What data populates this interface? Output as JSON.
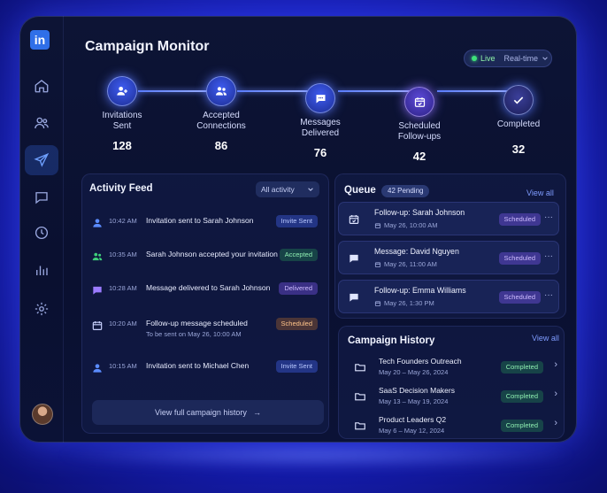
{
  "header": {
    "title": "Campaign Monitor",
    "live_label": "Live",
    "mode_label": "Real-time"
  },
  "sidebar": {
    "logo": "in",
    "items": [
      {
        "icon": "home-icon"
      },
      {
        "icon": "users-icon"
      },
      {
        "icon": "send-icon",
        "active": true
      },
      {
        "icon": "message-icon"
      },
      {
        "icon": "clock-icon"
      },
      {
        "icon": "bar-chart-icon"
      },
      {
        "icon": "gear-icon"
      }
    ]
  },
  "pipeline": {
    "steps": [
      {
        "label_1": "Invitations",
        "label_2": "Sent",
        "count": "128",
        "icon": "user-plus-icon"
      },
      {
        "label_1": "Accepted",
        "label_2": "Connections",
        "count": "86",
        "icon": "users-icon"
      },
      {
        "label_1": "Messages",
        "label_2": "Delivered",
        "count": "76",
        "icon": "message-icon"
      },
      {
        "label_1": "Scheduled",
        "label_2": "Follow-ups",
        "count": "42",
        "icon": "calendar-icon"
      },
      {
        "label_1": "Completed",
        "label_2": "",
        "count": "32",
        "icon": "check-icon"
      }
    ]
  },
  "activity": {
    "title": "Activity Feed",
    "filter": "All activity",
    "items": [
      {
        "time": "10:42 AM",
        "text": "Invitation sent to Sarah Johnson",
        "sub": "",
        "badge": "Invite Sent",
        "icon": "user-icon"
      },
      {
        "time": "10:35 AM",
        "text": "Sarah Johnson accepted your invitation",
        "sub": "",
        "badge": "Accepted",
        "icon": "users-icon"
      },
      {
        "time": "10:28 AM",
        "text": "Message delivered to Sarah Johnson",
        "sub": "",
        "badge": "Delivered",
        "icon": "message-icon"
      },
      {
        "time": "10:20 AM",
        "text": "Follow-up message scheduled",
        "sub": "To be sent on May 26, 10:00 AM",
        "badge": "Scheduled",
        "icon": "calendar-icon"
      },
      {
        "time": "10:15 AM",
        "text": "Invitation sent to Michael Chen",
        "sub": "",
        "badge": "Invite Sent",
        "icon": "user-icon"
      }
    ],
    "view_full": "View full campaign history",
    "view_full_arrow": "→"
  },
  "queue": {
    "title": "Queue",
    "pending": "42 Pending",
    "view_all": "View all",
    "items": [
      {
        "title": "Follow-up: Sarah Johnson",
        "date": "May 26, 10:00 AM",
        "badge": "Scheduled",
        "icon": "calendar-icon"
      },
      {
        "title": "Message: David Nguyen",
        "date": "May 26, 11:00 AM",
        "badge": "Scheduled",
        "icon": "message-icon"
      },
      {
        "title": "Follow-up: Emma Williams",
        "date": "May 26, 1:30 PM",
        "badge": "Scheduled",
        "icon": "message-icon"
      }
    ],
    "more": "···"
  },
  "history": {
    "title": "Campaign History",
    "view_all": "View all",
    "items": [
      {
        "title": "Tech Founders Outreach",
        "dates": "May 20 – May 26, 2024",
        "badge": "Completed"
      },
      {
        "title": "SaaS Decision Makers",
        "dates": "May 13 – May 19, 2024",
        "badge": "Completed"
      },
      {
        "title": "Product Leaders Q2",
        "dates": "May 6 – May 12, 2024",
        "badge": "Completed"
      }
    ],
    "chevron": "›"
  },
  "colors": {
    "accent": "#5a7dff",
    "live": "#3ee07a",
    "completed": "#8ff0b2"
  }
}
